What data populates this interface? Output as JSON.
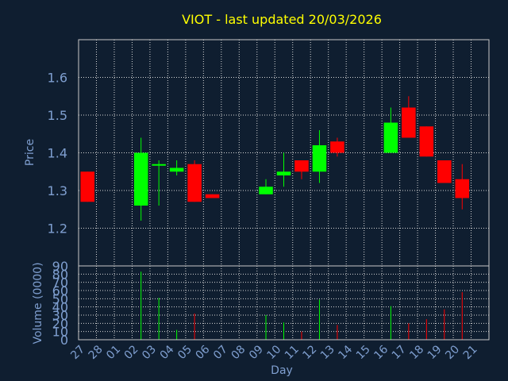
{
  "chart_data": [
    {
      "type": "candlestick",
      "title": "VIOT - last updated 20/03/2026",
      "ylabel": "Price",
      "ylim": [
        1.1,
        1.7
      ],
      "yticks": [
        1.2,
        1.3,
        1.4,
        1.5,
        1.6
      ],
      "grid": true,
      "colors": {
        "up": "#00ff00",
        "down": "#ff0000"
      },
      "categories": [
        "27",
        "28",
        "01",
        "02",
        "03",
        "04",
        "05",
        "06",
        "07",
        "08",
        "09",
        "10",
        "11",
        "12",
        "13",
        "14",
        "15",
        "16",
        "17",
        "18",
        "19",
        "20",
        "21"
      ],
      "candles": [
        {
          "day": "27",
          "open": 1.35,
          "high": 1.35,
          "low": 1.27,
          "close": 1.27
        },
        {
          "day": "02",
          "open": 1.26,
          "high": 1.44,
          "low": 1.22,
          "close": 1.4
        },
        {
          "day": "03",
          "open": 1.37,
          "high": 1.38,
          "low": 1.26,
          "close": 1.37
        },
        {
          "day": "04",
          "open": 1.35,
          "high": 1.38,
          "low": 1.34,
          "close": 1.36
        },
        {
          "day": "05",
          "open": 1.37,
          "high": 1.38,
          "low": 1.27,
          "close": 1.27
        },
        {
          "day": "06",
          "open": 1.29,
          "high": 1.29,
          "low": 1.28,
          "close": 1.28
        },
        {
          "day": "09",
          "open": 1.29,
          "high": 1.33,
          "low": 1.29,
          "close": 1.31
        },
        {
          "day": "10",
          "open": 1.34,
          "high": 1.4,
          "low": 1.31,
          "close": 1.35
        },
        {
          "day": "11",
          "open": 1.38,
          "high": 1.38,
          "low": 1.33,
          "close": 1.35
        },
        {
          "day": "12",
          "open": 1.35,
          "high": 1.46,
          "low": 1.32,
          "close": 1.42
        },
        {
          "day": "13",
          "open": 1.43,
          "high": 1.44,
          "low": 1.39,
          "close": 1.4
        },
        {
          "day": "16",
          "open": 1.4,
          "high": 1.52,
          "low": 1.4,
          "close": 1.48
        },
        {
          "day": "17",
          "open": 1.52,
          "high": 1.55,
          "low": 1.44,
          "close": 1.44
        },
        {
          "day": "18",
          "open": 1.47,
          "high": 1.47,
          "low": 1.39,
          "close": 1.39
        },
        {
          "day": "19",
          "open": 1.38,
          "high": 1.38,
          "low": 1.32,
          "close": 1.32
        },
        {
          "day": "20",
          "open": 1.33,
          "high": 1.37,
          "low": 1.25,
          "close": 1.28
        }
      ]
    },
    {
      "type": "bar",
      "xlabel": "Day",
      "ylabel": "Volume (0000)",
      "ylim": [
        0,
        90
      ],
      "yticks": [
        0,
        10,
        20,
        30,
        40,
        50,
        60,
        70,
        80,
        90
      ],
      "grid": true,
      "categories": [
        "27",
        "28",
        "01",
        "02",
        "03",
        "04",
        "05",
        "06",
        "07",
        "08",
        "09",
        "10",
        "11",
        "12",
        "13",
        "14",
        "15",
        "16",
        "17",
        "18",
        "19",
        "20",
        "21"
      ],
      "bars": [
        {
          "day": "02",
          "value": 83,
          "direction": "up"
        },
        {
          "day": "03",
          "value": 51,
          "direction": "up"
        },
        {
          "day": "04",
          "value": 12,
          "direction": "up"
        },
        {
          "day": "05",
          "value": 32,
          "direction": "down"
        },
        {
          "day": "09",
          "value": 30,
          "direction": "up"
        },
        {
          "day": "10",
          "value": 21,
          "direction": "up"
        },
        {
          "day": "11",
          "value": 10,
          "direction": "down"
        },
        {
          "day": "12",
          "value": 49,
          "direction": "up"
        },
        {
          "day": "13",
          "value": 18,
          "direction": "down"
        },
        {
          "day": "16",
          "value": 41,
          "direction": "up"
        },
        {
          "day": "17",
          "value": 20,
          "direction": "down"
        },
        {
          "day": "18",
          "value": 25,
          "direction": "down"
        },
        {
          "day": "19",
          "value": 37,
          "direction": "down"
        },
        {
          "day": "20",
          "value": 58,
          "direction": "down"
        }
      ]
    }
  ]
}
